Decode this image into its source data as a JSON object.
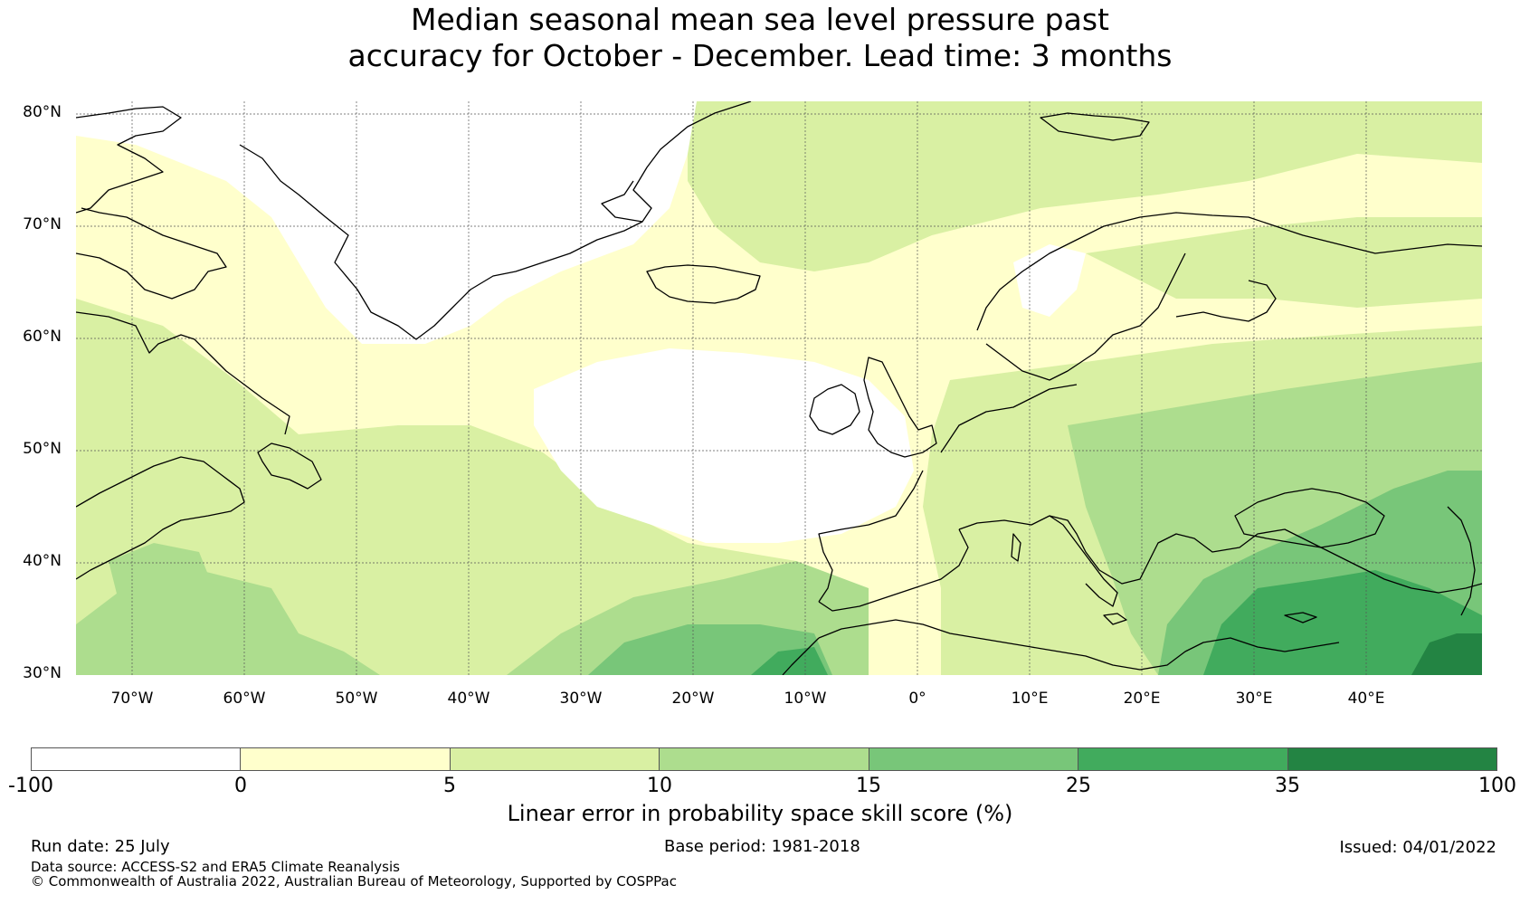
{
  "title": {
    "line1": "Median seasonal mean sea level pressure past",
    "line2": "accuracy for October - December. Lead time: 3 months"
  },
  "map": {
    "lat_labels": [
      "80°N",
      "70°N",
      "60°N",
      "50°N",
      "40°N",
      "30°N"
    ],
    "lon_labels": [
      "70°W",
      "60°W",
      "50°W",
      "40°W",
      "30°W",
      "20°W",
      "10°W",
      "0°",
      "10°E",
      "20°E",
      "30°E",
      "40°E"
    ],
    "colors": {
      "land_outline": "#000000",
      "gridline": "#555555"
    }
  },
  "colorbar": {
    "ticks": [
      "-100",
      "0",
      "5",
      "10",
      "15",
      "25",
      "35",
      "100"
    ],
    "colors": [
      "#ffffff",
      "#ffffcc",
      "#d9f0a3",
      "#addd8e",
      "#78c679",
      "#41ab5d",
      "#238443"
    ],
    "label": "Linear error in probability space skill score (%)"
  },
  "footer": {
    "run_date": "Run date: 25 July",
    "base_period": "Base period: 1981-2018",
    "issued": "Issued: 04/01/2022",
    "data_source": "Data source: ACCESS-S2 and ERA5 Climate Reanalysis",
    "copyright": "© Commonwealth of Australia 2022, Australian Bureau of Meteorology, Supported by COSPPac"
  }
}
